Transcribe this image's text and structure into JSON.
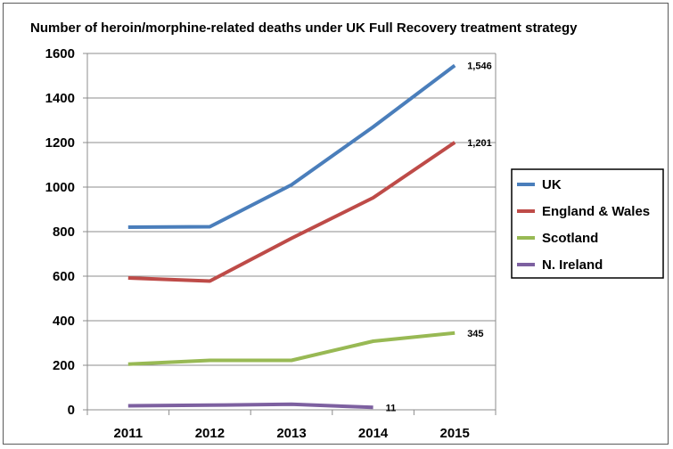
{
  "chart_data": {
    "type": "line",
    "title": "Number of heroin/morphine-related deaths under UK Full Recovery treatment strategy",
    "categories": [
      "2011",
      "2012",
      "2013",
      "2014",
      "2015"
    ],
    "ylim": [
      0,
      1600
    ],
    "yticks": [
      0,
      200,
      400,
      600,
      800,
      1000,
      1200,
      1400,
      1600
    ],
    "ytick_labels": [
      "0",
      "200",
      "400",
      "600",
      "800",
      "1000",
      "1200",
      "1400",
      "1600"
    ],
    "grid": true,
    "legend_position": "right",
    "series": [
      {
        "name": "UK",
        "color": "#4a7ebb",
        "values": [
          820,
          822,
          1010,
          1270,
          1546
        ],
        "end_label": "1,546"
      },
      {
        "name": "England & Wales",
        "color": "#be4b48",
        "values": [
          592,
          578,
          770,
          952,
          1201
        ],
        "end_label": "1,201"
      },
      {
        "name": "Scotland",
        "color": "#98b954",
        "values": [
          205,
          222,
          222,
          308,
          345
        ],
        "end_label": "345"
      },
      {
        "name": "N. Ireland",
        "color": "#7d60a0",
        "values": [
          18,
          21,
          25,
          11,
          null
        ],
        "end_label": "11"
      }
    ]
  }
}
